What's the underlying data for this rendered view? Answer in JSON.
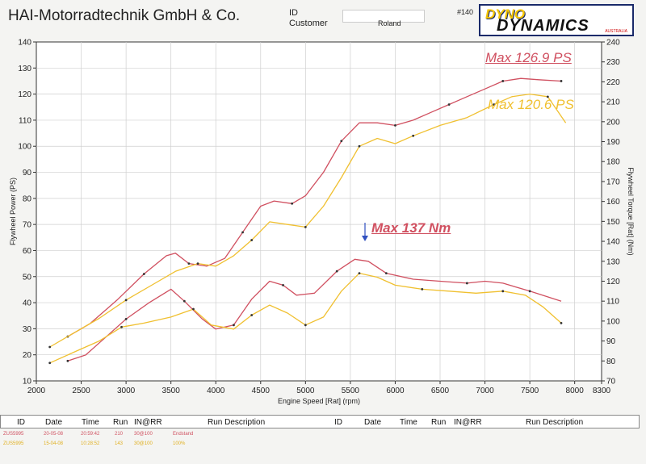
{
  "header": {
    "company": "HAI-Motorradtechnik GmbH & Co.",
    "id_label": "ID",
    "customer_label": "Customer",
    "customer_name": "Roland",
    "run_number": "#140",
    "logo_top": "DYNO",
    "logo_bottom": "DYNAMICS",
    "logo_sub": "AUSTRALIA"
  },
  "annotations": {
    "max_power_1": "Max 126.9 PS",
    "max_power_2": "Max 120.6 PS",
    "max_torque": "Max 137 Nm"
  },
  "colors": {
    "run1": "#d05060",
    "run2": "#f0c030",
    "axis": "#333333",
    "grid": "#cfcfcf"
  },
  "chart_data": {
    "type": "line",
    "xlabel": "Engine Speed [Rat] (rpm)",
    "ylabel": "Flywheel Power (PS)",
    "y2label": "Flywheel Torque [Rat] (Nm)",
    "xlim": [
      2000,
      8300
    ],
    "ylim": [
      10,
      140
    ],
    "y2lim": [
      70,
      240
    ],
    "x_ticks": [
      2000,
      2500,
      3000,
      3500,
      4000,
      4500,
      5000,
      5500,
      6000,
      6500,
      7000,
      7500,
      8000,
      8300
    ],
    "y_ticks": [
      10,
      20,
      30,
      40,
      50,
      60,
      70,
      80,
      90,
      100,
      110,
      120,
      130,
      140
    ],
    "y2_ticks": [
      70,
      80,
      90,
      100,
      110,
      120,
      130,
      140,
      150,
      160,
      170,
      180,
      190,
      200,
      210,
      220,
      230,
      240
    ],
    "grid": true,
    "series": [
      {
        "axis": "left",
        "color": "#d05060",
        "x": [
          2350,
          2600,
          2900,
          3200,
          3450,
          3550,
          3700,
          3900,
          4100,
          4300,
          4500,
          4650,
          4850,
          5000,
          5200,
          5400,
          5600,
          5800,
          6000,
          6200,
          6400,
          6600,
          6800,
          7000,
          7200,
          7400,
          7600,
          7850
        ],
        "values": [
          27,
          32,
          41,
          51,
          58,
          59,
          55,
          54,
          57,
          67,
          77,
          79,
          78,
          81,
          90,
          102,
          109,
          109,
          108,
          110,
          113,
          116,
          119,
          122,
          125,
          126,
          125.5,
          125
        ]
      },
      {
        "axis": "left",
        "color": "#f0c030",
        "x": [
          2150,
          2400,
          2700,
          3000,
          3300,
          3550,
          3800,
          4000,
          4200,
          4400,
          4600,
          4800,
          5000,
          5200,
          5400,
          5600,
          5800,
          6000,
          6200,
          6500,
          6800,
          7100,
          7300,
          7500,
          7700,
          7900
        ],
        "values": [
          23,
          28,
          34,
          41,
          47,
          52,
          55,
          54,
          58,
          64,
          71,
          70,
          69,
          77,
          88,
          100,
          103,
          101,
          104,
          108,
          111,
          116,
          119,
          120,
          119,
          109
        ]
      },
      {
        "axis": "right",
        "color": "#d05060",
        "x": [
          2350,
          2550,
          2800,
          3000,
          3250,
          3500,
          3650,
          3850,
          4000,
          4200,
          4400,
          4600,
          4750,
          4900,
          5100,
          5350,
          5550,
          5700,
          5900,
          6200,
          6500,
          6800,
          7000,
          7200,
          7500,
          7850
        ],
        "values": [
          80,
          83,
          93,
          101,
          109,
          116,
          110,
          101,
          96,
          98,
          111,
          120,
          118,
          113,
          114,
          125,
          131,
          130,
          124,
          121,
          120,
          119,
          120,
          119,
          115,
          110
        ]
      },
      {
        "axis": "right",
        "color": "#f0c030",
        "x": [
          2150,
          2450,
          2700,
          2950,
          3200,
          3500,
          3750,
          3950,
          4200,
          4400,
          4600,
          4800,
          5000,
          5200,
          5400,
          5600,
          5800,
          6000,
          6300,
          6600,
          6900,
          7200,
          7450,
          7650,
          7850
        ],
        "values": [
          79,
          85,
          90,
          97,
          99,
          102,
          106,
          98,
          96,
          103,
          108,
          104,
          98,
          102,
          115,
          124,
          122,
          118,
          116,
          115,
          114,
          115,
          113,
          107,
          99
        ]
      }
    ]
  },
  "table": {
    "headers": [
      "ID",
      "Date",
      "Time",
      "Run",
      "IN@RR",
      "Run Description",
      "ID",
      "Date",
      "Time",
      "Run",
      "IN@RR",
      "Run Description"
    ],
    "rows": [
      {
        "color": "#d05060",
        "id": "ZUS5995",
        "date": "20-05-08",
        "time": "20:59:42",
        "run": "210",
        "inrr": "30@100",
        "desc": "Endstand"
      },
      {
        "color": "#f0c030",
        "id": "ZUS5995",
        "date": "15-04-08",
        "time": "10:28:52",
        "run": "143",
        "inrr": "30@100",
        "desc": "100%"
      }
    ]
  }
}
